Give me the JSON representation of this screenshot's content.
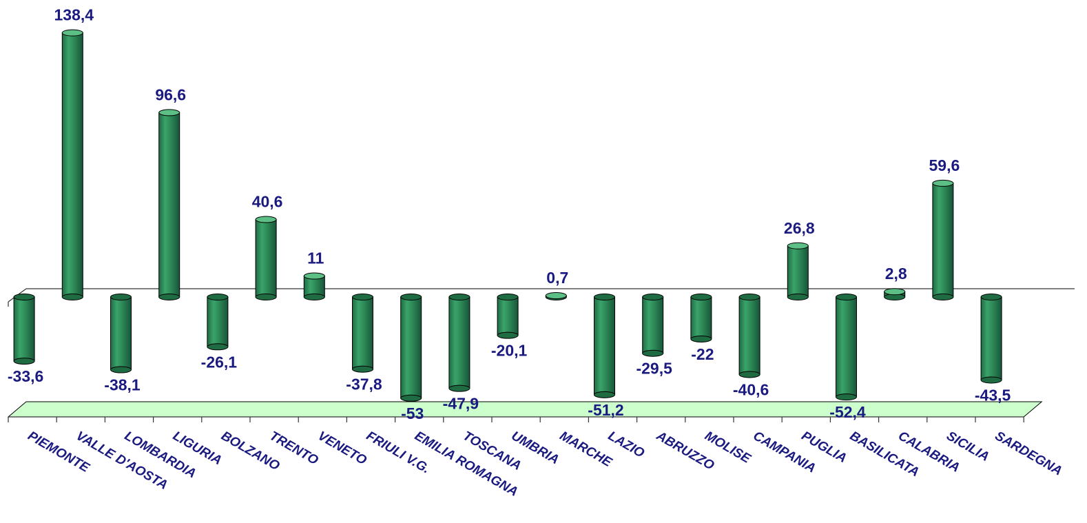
{
  "chart_data": {
    "type": "bar",
    "title": "",
    "xlabel": "",
    "ylabel": "",
    "categories": [
      "PIEMONTE",
      "VALLE D'AOSTA",
      "LOMBARDIA",
      "LIGURIA",
      "BOLZANO",
      "TRENTO",
      "VENETO",
      "FRIULI V.G.",
      "EMILIA ROMAGNA",
      "TOSCANA",
      "UMBRIA",
      "MARCHE",
      "LAZIO",
      "ABRUZZO",
      "MOLISE",
      "CAMPANIA",
      "PUGLIA",
      "BASILICATA",
      "CALABRIA",
      "SICILIA",
      "SARDEGNA"
    ],
    "value_labels": [
      "-33,6",
      "138,4",
      "-38,1",
      "96,6",
      "-26,1",
      "40,6",
      "11",
      "-37,8",
      "-53",
      "-47,9",
      "-20,1",
      "0,7",
      "-51,2",
      "-29,5",
      "-22",
      "-40,6",
      "26,8",
      "-52,4",
      "2,8",
      "59,6",
      "-43,5"
    ],
    "series": [
      {
        "values": [
          -33.6,
          138.4,
          -38.1,
          96.6,
          -26.1,
          40.6,
          11,
          -37.8,
          -53,
          -47.9,
          -20.1,
          0.7,
          -51.2,
          -29.5,
          -22,
          -40.6,
          26.8,
          -52.4,
          2.8,
          59.6,
          -43.5
        ]
      }
    ],
    "colors": {
      "bar": "#2e8b57",
      "bar_dark": "#1f6b42",
      "bar_light": "#5cbf86",
      "floor": "#ccffcc",
      "labels": "#1a1a80"
    },
    "style": "3d-cylinder",
    "grid": false,
    "legend": "none"
  }
}
